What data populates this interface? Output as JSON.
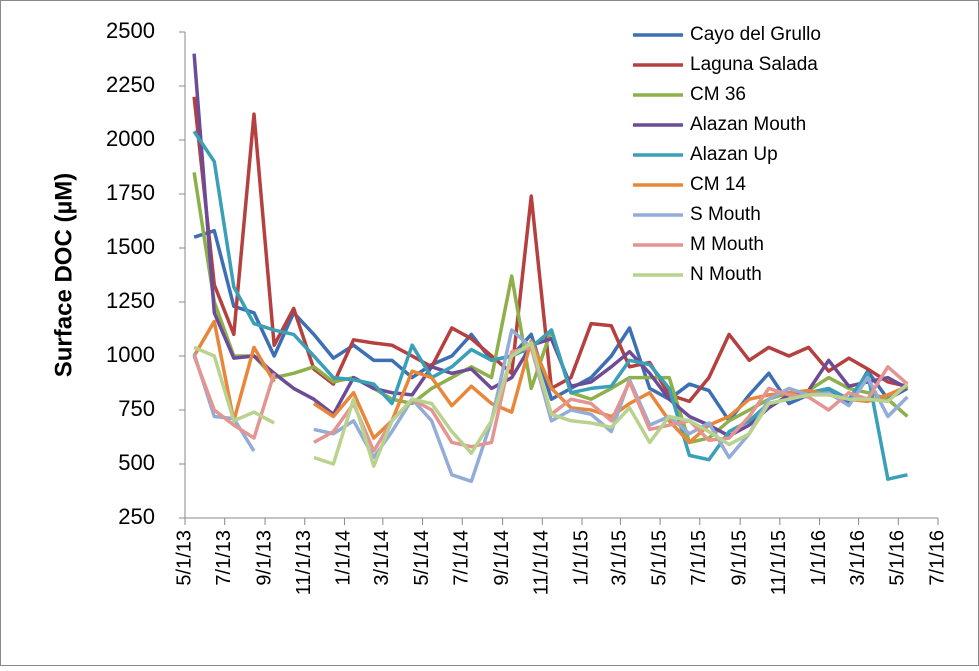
{
  "chart_data": {
    "type": "line",
    "y_label": "Surface DOC (µM)",
    "x": [
      "5/15/13",
      "6/15/13",
      "7/15/13",
      "8/15/13",
      "9/15/13",
      "10/15/13",
      "11/15/13",
      "12/15/13",
      "1/15/14",
      "2/15/14",
      "3/15/14",
      "4/15/14",
      "5/15/14",
      "6/15/14",
      "7/15/14",
      "8/15/14",
      "9/15/14",
      "10/15/14",
      "11/15/14",
      "12/15/14",
      "1/15/15",
      "2/15/15",
      "3/15/15",
      "4/15/15",
      "5/15/15",
      "6/15/15",
      "7/15/15",
      "8/15/15",
      "9/15/15",
      "10/15/15",
      "11/15/15",
      "12/15/15",
      "1/15/16",
      "2/15/16",
      "3/15/16",
      "4/15/16",
      "5/15/16"
    ],
    "xlim": [
      "5/1/13",
      "7/1/16"
    ],
    "xticks": [
      "5/1/13",
      "7/1/13",
      "9/1/13",
      "11/1/13",
      "1/1/14",
      "3/1/14",
      "5/1/14",
      "7/1/14",
      "9/1/14",
      "11/1/14",
      "1/1/15",
      "3/1/15",
      "5/1/15",
      "7/1/15",
      "9/1/15",
      "11/1/15",
      "1/1/16",
      "3/1/16",
      "5/1/16",
      "7/1/16"
    ],
    "ylim": [
      250,
      2500
    ],
    "yticks": [
      250,
      500,
      750,
      1000,
      1250,
      1500,
      1750,
      2000,
      2250,
      2500
    ],
    "legend": "upper right",
    "series": [
      {
        "name": "Cayo del Grullo",
        "color": "#3c6fb4",
        "values": [
          1550,
          1580,
          1230,
          1200,
          1000,
          1200,
          1100,
          990,
          1050,
          980,
          980,
          900,
          960,
          1000,
          1100,
          980,
          1000,
          1100,
          800,
          850,
          900,
          1000,
          1130,
          850,
          800,
          870,
          840,
          700,
          820,
          920,
          780,
          820,
          840,
          780,
          930,
          800,
          850
        ]
      },
      {
        "name": "Laguna Salada",
        "color": "#b5403f",
        "values": [
          2200,
          1330,
          1100,
          2120,
          1050,
          1220,
          940,
          870,
          1075,
          1060,
          1050,
          1000,
          950,
          1130,
          1080,
          1000,
          920,
          1740,
          850,
          900,
          1150,
          1140,
          950,
          970,
          820,
          790,
          900,
          1100,
          980,
          1040,
          1000,
          1040,
          930,
          990,
          940,
          880,
          860
        ]
      },
      {
        "name": "CM 36",
        "color": "#8db04a",
        "values": [
          1850,
          1250,
          1000,
          1000,
          900,
          920,
          950,
          880,
          900,
          850,
          800,
          780,
          850,
          900,
          950,
          900,
          1370,
          850,
          1120,
          830,
          800,
          850,
          900,
          900,
          900,
          600,
          620,
          700,
          750,
          800,
          830,
          840,
          900,
          850,
          830,
          800,
          720
        ]
      },
      {
        "name": "Alazan Mouth",
        "color": "#6d4c97",
        "values": [
          2400,
          1200,
          990,
          1000,
          920,
          850,
          800,
          730,
          900,
          850,
          830,
          820,
          950,
          920,
          940,
          850,
          900,
          1050,
          1080,
          860,
          880,
          950,
          1020,
          920,
          800,
          720,
          680,
          630,
          680,
          760,
          820,
          840,
          980,
          860,
          880,
          900,
          850
        ]
      },
      {
        "name": "Alazan Up",
        "color": "#3aa0b8",
        "values": [
          2040,
          1900,
          1320,
          1150,
          1120,
          1100,
          1000,
          900,
          890,
          870,
          780,
          1050,
          900,
          950,
          1030,
          980,
          1000,
          1040,
          1120,
          830,
          850,
          860,
          980,
          960,
          850,
          540,
          520,
          650,
          700,
          780,
          800,
          830,
          850,
          800,
          920,
          430,
          450
        ]
      },
      {
        "name": "CM 14",
        "color": "#e8873a",
        "values": [
          1000,
          1160,
          700,
          1040,
          880,
          null,
          780,
          720,
          830,
          620,
          700,
          930,
          900,
          770,
          860,
          780,
          740,
          1070,
          850,
          760,
          750,
          720,
          780,
          830,
          700,
          600,
          680,
          720,
          800,
          820,
          830,
          840,
          820,
          800,
          790,
          820,
          860
        ]
      },
      {
        "name": "S Mouth",
        "color": "#93add8",
        "values": [
          1010,
          720,
          710,
          560,
          null,
          null,
          660,
          640,
          700,
          530,
          650,
          800,
          700,
          450,
          420,
          700,
          1120,
          1040,
          700,
          750,
          730,
          650,
          890,
          680,
          720,
          640,
          690,
          530,
          640,
          800,
          850,
          820,
          830,
          770,
          900,
          720,
          810
        ]
      },
      {
        "name": "M Mouth",
        "color": "#e49592",
        "values": [
          1000,
          750,
          680,
          620,
          920,
          null,
          600,
          650,
          780,
          560,
          700,
          800,
          750,
          600,
          580,
          600,
          1020,
          1040,
          730,
          800,
          780,
          700,
          880,
          660,
          680,
          700,
          610,
          620,
          720,
          850,
          820,
          810,
          750,
          830,
          800,
          950,
          870
        ]
      },
      {
        "name": "N Mouth",
        "color": "#b9d38e",
        "values": [
          1040,
          1000,
          700,
          740,
          690,
          null,
          530,
          500,
          800,
          490,
          700,
          800,
          780,
          650,
          550,
          700,
          1000,
          1060,
          730,
          700,
          690,
          670,
          760,
          600,
          720,
          700,
          650,
          590,
          640,
          780,
          800,
          820,
          820,
          800,
          800,
          790,
          870
        ]
      }
    ]
  }
}
